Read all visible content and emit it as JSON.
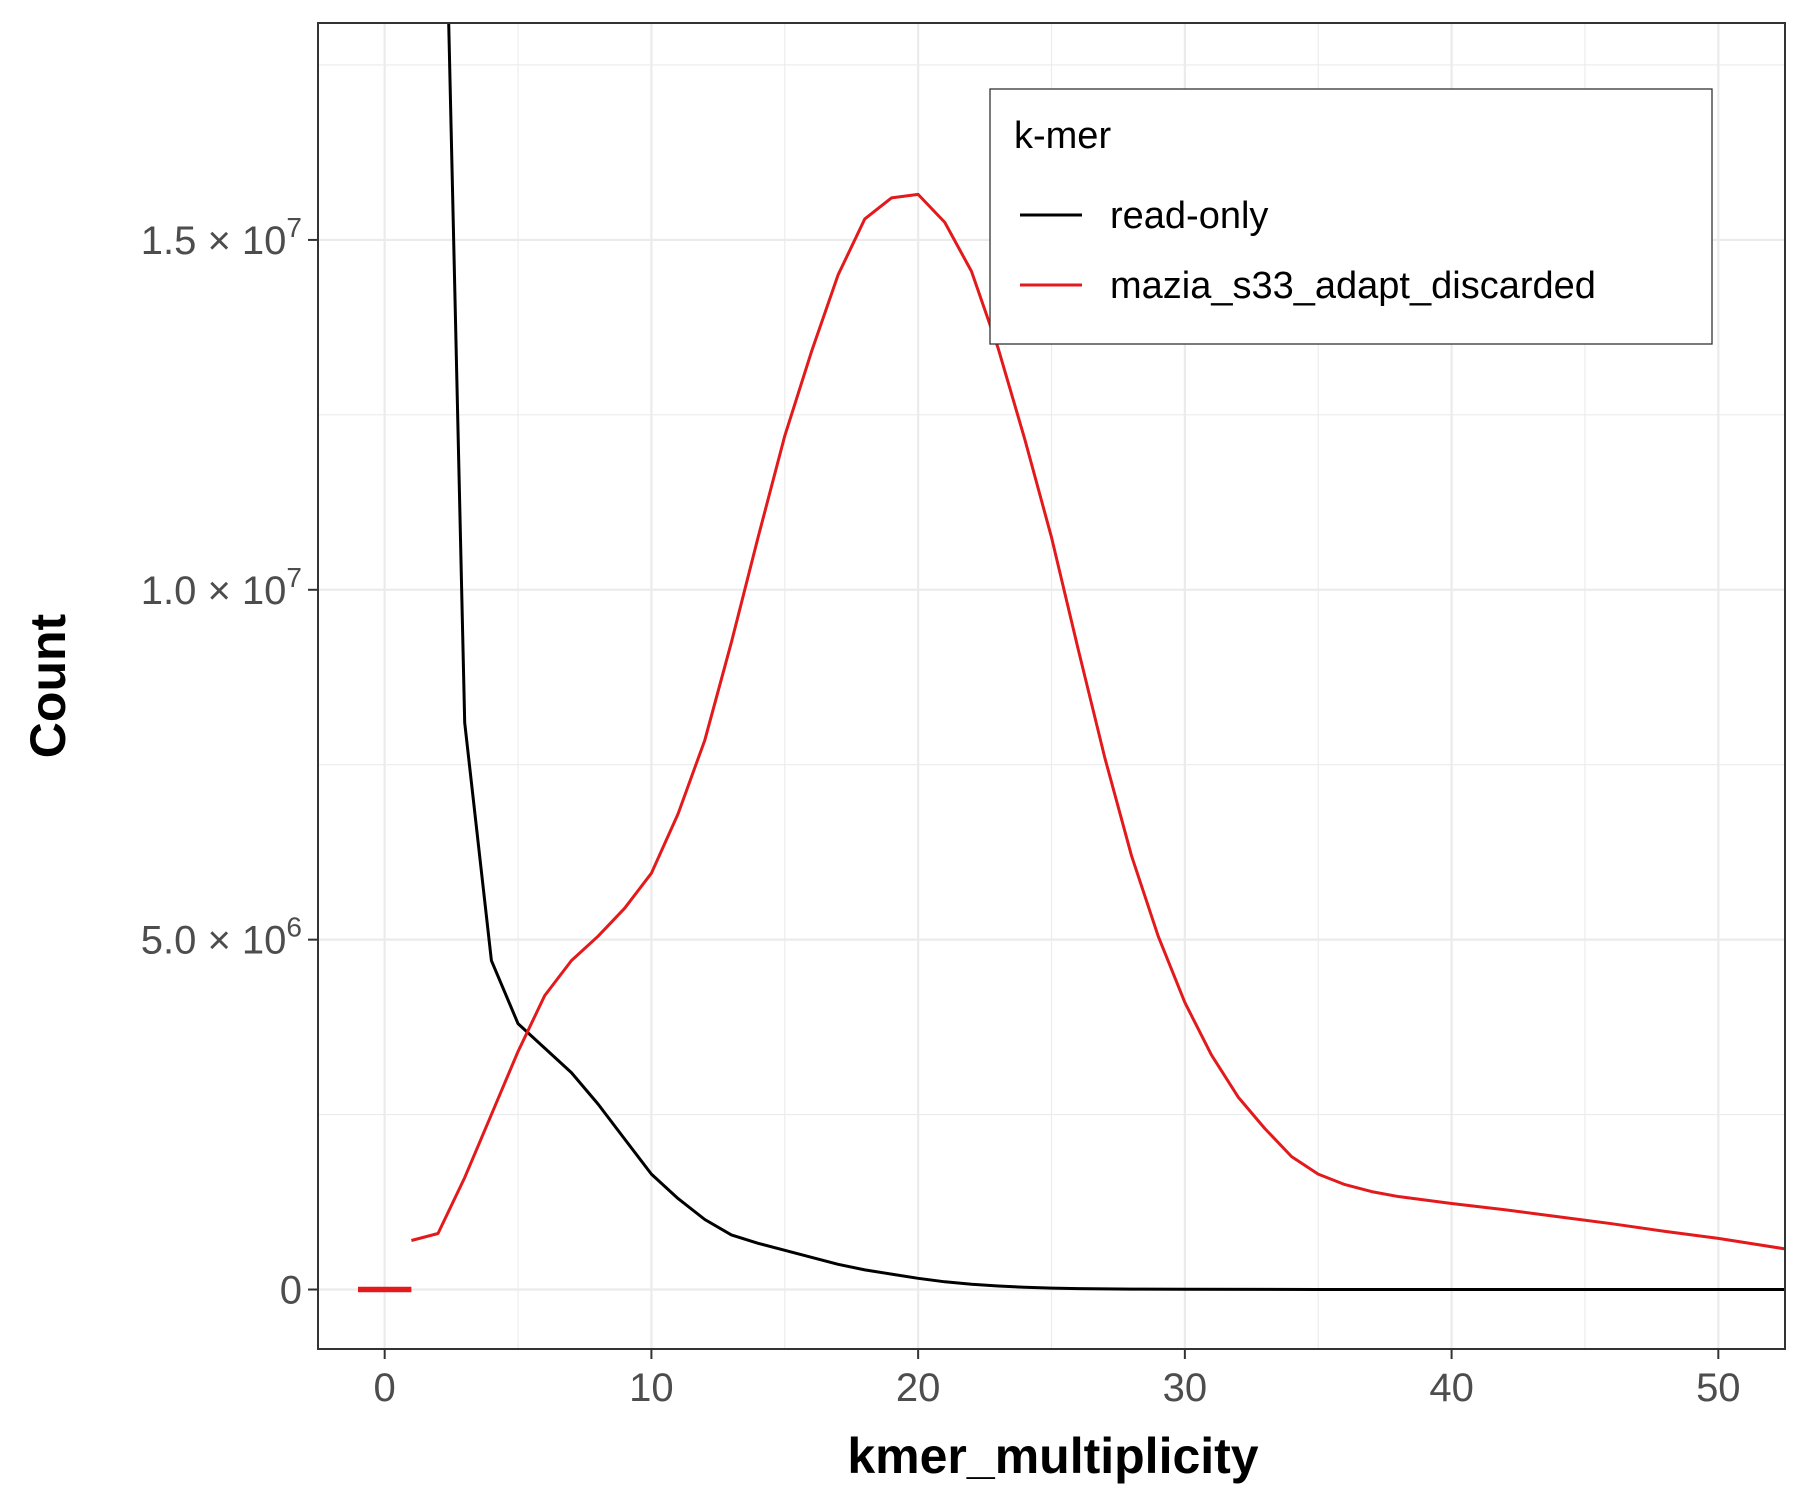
{
  "chart_data": {
    "type": "line",
    "xlabel": "kmer_multiplicity",
    "ylabel": "Count",
    "xlim": [
      -2.5,
      52.5
    ],
    "ylim": [
      -850000,
      18100000
    ],
    "grid": true,
    "legend": {
      "title": "k-mer",
      "placement": "top-right",
      "entries": [
        "read-only",
        "mazia_s33_adapt_discarded"
      ]
    },
    "x_ticks": [
      {
        "value": 0,
        "label": "0"
      },
      {
        "value": 10,
        "label": "10"
      },
      {
        "value": 20,
        "label": "20"
      },
      {
        "value": 30,
        "label": "30"
      },
      {
        "value": 40,
        "label": "40"
      },
      {
        "value": 50,
        "label": "50"
      }
    ],
    "x_minor_ticks": [
      5,
      15,
      25,
      35,
      45
    ],
    "y_ticks": [
      {
        "value": 0,
        "mantissa": "0",
        "exponent": ""
      },
      {
        "value": 5000000,
        "mantissa": "5.0 × 10",
        "exponent": "6"
      },
      {
        "value": 10000000,
        "mantissa": "1.0 × 10",
        "exponent": "7"
      },
      {
        "value": 15000000,
        "mantissa": "1.5 × 10",
        "exponent": "7"
      }
    ],
    "y_minor_ticks": [
      2500000,
      7500000,
      12500000,
      17500000
    ],
    "series": [
      {
        "name": "read-only",
        "color": "#000000",
        "x": [
          2.4,
          3,
          4,
          5,
          6,
          7,
          8,
          9,
          10,
          11,
          12,
          13,
          14,
          15,
          16,
          17,
          18,
          19,
          20,
          21,
          22,
          23,
          24,
          25,
          26,
          28,
          30,
          35,
          40,
          45,
          50,
          52.5
        ],
        "y": [
          18100000,
          8100000,
          4700000,
          3800000,
          3450000,
          3100000,
          2650000,
          2150000,
          1650000,
          1300000,
          1000000,
          780000,
          660000,
          560000,
          460000,
          360000,
          280000,
          220000,
          160000,
          110000,
          75000,
          50000,
          32000,
          20000,
          13000,
          6000,
          3000,
          1000,
          300,
          100,
          50,
          30
        ]
      },
      {
        "name": "mazia_s33_adapt_discarded",
        "color": "#e31a1c",
        "x": [
          1,
          2,
          3,
          4,
          5,
          6,
          7,
          8,
          9,
          10,
          11,
          12,
          13,
          14,
          15,
          16,
          17,
          18,
          19,
          20,
          21,
          22,
          23,
          24,
          25,
          26,
          27,
          28,
          29,
          30,
          31,
          32,
          33,
          34,
          35,
          36,
          37,
          38,
          40,
          42,
          44,
          46,
          48,
          50,
          52.5
        ],
        "y": [
          700000,
          800000,
          1600000,
          2500000,
          3400000,
          4200000,
          4700000,
          5050000,
          5450000,
          5950000,
          6800000,
          7850000,
          9250000,
          10750000,
          12200000,
          13400000,
          14500000,
          15300000,
          15600000,
          15650000,
          15250000,
          14550000,
          13450000,
          12150000,
          10750000,
          9150000,
          7600000,
          6200000,
          5050000,
          4100000,
          3350000,
          2750000,
          2300000,
          1900000,
          1650000,
          1500000,
          1400000,
          1330000,
          1230000,
          1140000,
          1040000,
          940000,
          830000,
          730000,
          580000
        ]
      },
      {
        "name": "mazia_s33_adapt_discarded",
        "color": "#e31a1c",
        "x": [
          -1,
          1
        ],
        "y": [
          0,
          0
        ]
      }
    ]
  }
}
